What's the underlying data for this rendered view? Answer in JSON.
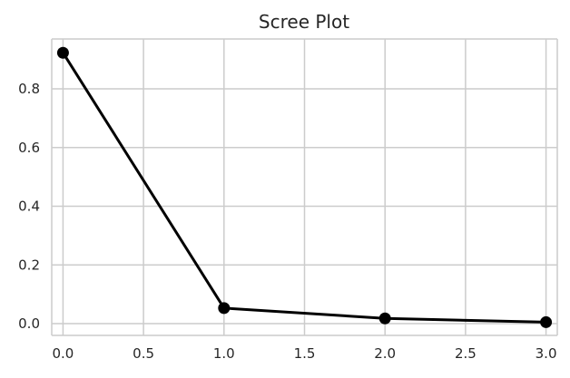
{
  "chart_data": {
    "type": "line",
    "title": "Scree Plot",
    "xlabel": "",
    "ylabel": "",
    "x": [
      0.0,
      1.0,
      2.0,
      3.0
    ],
    "series": [
      {
        "values": [
          0.923,
          0.053,
          0.018,
          0.005
        ],
        "color": "#000000",
        "marker": "circle"
      }
    ],
    "xlim": [
      -0.07,
      3.07
    ],
    "ylim": [
      -0.04,
      0.97
    ],
    "xticks": [
      0.0,
      0.5,
      1.0,
      1.5,
      2.0,
      2.5,
      3.0
    ],
    "xtick_labels": [
      "0.0",
      "0.5",
      "1.0",
      "1.5",
      "2.0",
      "2.5",
      "3.0"
    ],
    "yticks": [
      0.0,
      0.2,
      0.4,
      0.6,
      0.8
    ],
    "ytick_labels": [
      "0.0",
      "0.2",
      "0.4",
      "0.6",
      "0.8"
    ],
    "grid": true,
    "legend": "none"
  }
}
